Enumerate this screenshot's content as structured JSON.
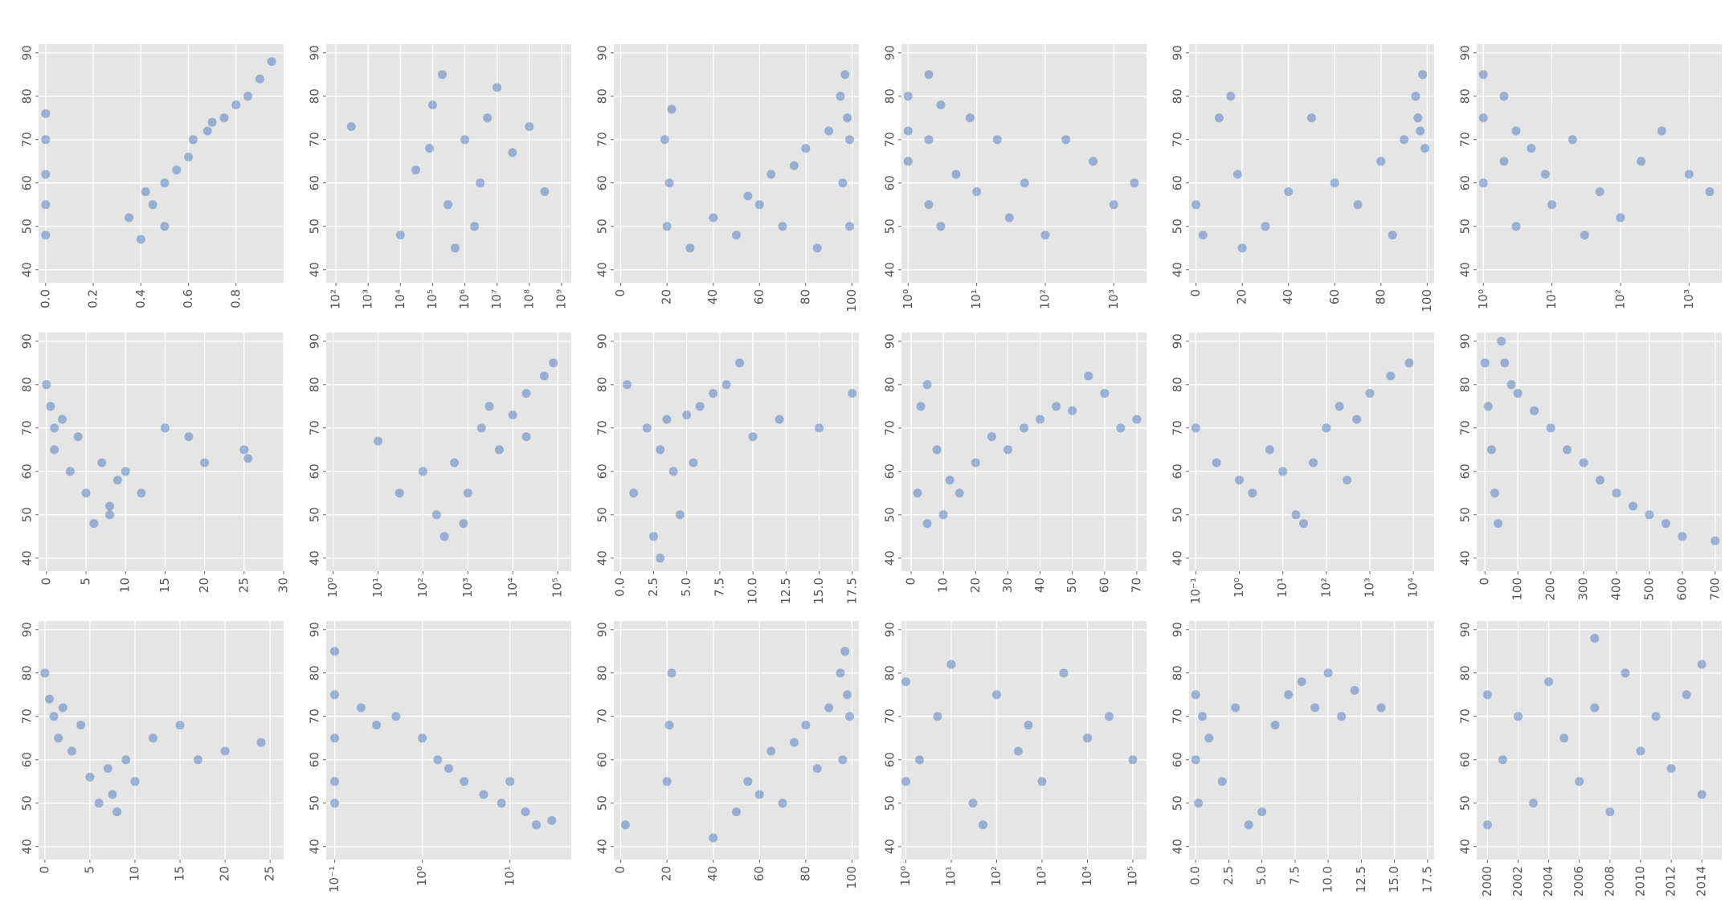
{
  "chart_data": [
    {
      "type": "scatter",
      "color": "#0047ab",
      "grid": true,
      "xscale": "linear",
      "xlim": [
        -0.03,
        1.0
      ],
      "xticks": [
        {
          "value": 0,
          "label": "0.0"
        },
        {
          "value": 0.2,
          "label": "0.2"
        },
        {
          "value": 0.4,
          "label": "0.4"
        },
        {
          "value": 0.6,
          "label": "0.6"
        },
        {
          "value": 0.8,
          "label": "0.8"
        }
      ],
      "ylim": [
        37,
        92
      ],
      "yticks": [
        40,
        50,
        60,
        70,
        80,
        90
      ],
      "x": [
        0,
        0,
        0,
        0,
        0,
        0.35,
        0.4,
        0.45,
        0.5,
        0.55,
        0.6,
        0.62,
        0.68,
        0.7,
        0.75,
        0.8,
        0.85,
        0.9,
        0.95,
        0.5,
        0.42
      ],
      "y": [
        48,
        55,
        62,
        70,
        76,
        52,
        47,
        55,
        60,
        63,
        66,
        70,
        72,
        74,
        75,
        78,
        80,
        84,
        88,
        50,
        58
      ]
    },
    {
      "type": "scatter",
      "color": "#0047ab",
      "grid": true,
      "xscale": "log",
      "xlim": [
        50,
        2000000000
      ],
      "xticks": [
        {
          "value": 100,
          "label": "10²"
        },
        {
          "value": 1000,
          "label": "10³"
        },
        {
          "value": 10000,
          "label": "10⁴"
        },
        {
          "value": 100000,
          "label": "10⁵"
        },
        {
          "value": 1000000,
          "label": "10⁶"
        },
        {
          "value": 10000000,
          "label": "10⁷"
        },
        {
          "value": 100000000,
          "label": "10⁸"
        },
        {
          "value": 1000000000,
          "label": "10⁹"
        }
      ],
      "ylim": [
        37,
        92
      ],
      "yticks": [
        40,
        50,
        60,
        70,
        80,
        90
      ],
      "x": [
        300,
        10000,
        30000,
        100000,
        300000,
        1000000,
        3000000,
        10000000,
        30000000,
        100000000,
        300000000,
        500000,
        200000,
        2000000,
        5000000,
        80000
      ],
      "y": [
        73,
        48,
        63,
        78,
        55,
        70,
        60,
        82,
        67,
        73,
        58,
        45,
        85,
        50,
        75,
        68
      ]
    },
    {
      "type": "scatter",
      "color": "#0047ab",
      "grid": true,
      "xscale": "linear",
      "xlim": [
        -3,
        103
      ],
      "xticks": [
        0,
        20,
        40,
        60,
        80,
        100
      ],
      "ylim": [
        37,
        92
      ],
      "yticks": [
        40,
        50,
        60,
        70,
        80,
        90
      ],
      "x": [
        20,
        21,
        19,
        22,
        30,
        40,
        50,
        55,
        60,
        65,
        70,
        75,
        80,
        85,
        90,
        95,
        97,
        98,
        99,
        96,
        99
      ],
      "y": [
        50,
        60,
        70,
        77,
        45,
        52,
        48,
        57,
        55,
        62,
        50,
        64,
        68,
        45,
        72,
        80,
        85,
        75,
        70,
        60,
        50
      ]
    },
    {
      "type": "scatter",
      "color": "#0047ab",
      "grid": true,
      "xscale": "log",
      "xlim": [
        0.8,
        3000
      ],
      "xticks": [
        {
          "value": 1,
          "label": "10⁰"
        },
        {
          "value": 10,
          "label": "10¹"
        },
        {
          "value": 100,
          "label": "10²"
        },
        {
          "value": 1000,
          "label": "10³"
        }
      ],
      "ylim": [
        37,
        92
      ],
      "yticks": [
        40,
        50,
        60,
        70,
        80,
        90
      ],
      "x": [
        1,
        1,
        1,
        2,
        2,
        2,
        3,
        3,
        5,
        8,
        10,
        20,
        30,
        50,
        100,
        200,
        500,
        1000,
        2000
      ],
      "y": [
        80,
        72,
        65,
        85,
        70,
        55,
        78,
        50,
        62,
        75,
        58,
        70,
        52,
        60,
        48,
        70,
        65,
        55,
        60
      ]
    },
    {
      "type": "scatter",
      "color": "#0047ab",
      "grid": true,
      "xscale": "linear",
      "xlim": [
        -3,
        103
      ],
      "xticks": [
        0,
        20,
        40,
        60,
        80,
        100
      ],
      "ylim": [
        37,
        92
      ],
      "yticks": [
        40,
        50,
        60,
        70,
        80,
        90
      ],
      "x": [
        0,
        3,
        10,
        15,
        18,
        20,
        30,
        40,
        50,
        60,
        70,
        80,
        85,
        90,
        95,
        97,
        99,
        98,
        96
      ],
      "y": [
        55,
        48,
        75,
        80,
        62,
        45,
        50,
        58,
        75,
        60,
        55,
        65,
        48,
        70,
        80,
        72,
        68,
        85,
        75
      ]
    },
    {
      "type": "scatter",
      "color": "#0047ab",
      "grid": true,
      "xscale": "log",
      "xlim": [
        0.8,
        3000
      ],
      "xticks": [
        {
          "value": 1,
          "label": "10⁰"
        },
        {
          "value": 10,
          "label": "10¹"
        },
        {
          "value": 100,
          "label": "10²"
        },
        {
          "value": 1000,
          "label": "10³"
        }
      ],
      "ylim": [
        37,
        92
      ],
      "yticks": [
        40,
        50,
        60,
        70,
        80,
        90
      ],
      "x": [
        1,
        1,
        1,
        2,
        2,
        3,
        3,
        5,
        8,
        10,
        20,
        30,
        50,
        100,
        200,
        400,
        1000,
        2000
      ],
      "y": [
        85,
        75,
        60,
        80,
        65,
        72,
        50,
        68,
        62,
        55,
        70,
        48,
        58,
        52,
        65,
        72,
        62,
        58
      ]
    },
    {
      "type": "scatter",
      "color": "#0047ab",
      "grid": true,
      "xscale": "linear",
      "xlim": [
        -1,
        30
      ],
      "xticks": [
        0,
        5,
        10,
        15,
        20,
        25,
        30
      ],
      "ylim": [
        37,
        92
      ],
      "yticks": [
        40,
        50,
        60,
        70,
        80,
        90
      ],
      "x": [
        0,
        0.5,
        1,
        1,
        2,
        3,
        4,
        5,
        6,
        7,
        8,
        8,
        9,
        10,
        12,
        15,
        18,
        20,
        25,
        25.5
      ],
      "y": [
        80,
        75,
        70,
        65,
        72,
        60,
        68,
        55,
        48,
        62,
        52,
        50,
        58,
        60,
        55,
        70,
        68,
        62,
        65,
        63
      ]
    },
    {
      "type": "scatter",
      "color": "#0047ab",
      "grid": true,
      "xscale": "log",
      "xlim": [
        0.7,
        200000
      ],
      "xticks": [
        {
          "value": 1,
          "label": "10⁰"
        },
        {
          "value": 10,
          "label": "10¹"
        },
        {
          "value": 100,
          "label": "10²"
        },
        {
          "value": 1000,
          "label": "10³"
        },
        {
          "value": 10000,
          "label": "10⁴"
        },
        {
          "value": 100000,
          "label": "10⁵"
        }
      ],
      "ylim": [
        37,
        92
      ],
      "yticks": [
        40,
        50,
        60,
        70,
        80,
        90
      ],
      "x": [
        10,
        30,
        100,
        200,
        500,
        1000,
        2000,
        5000,
        10000,
        20000,
        50000,
        80000,
        300,
        3000,
        800,
        20000
      ],
      "y": [
        67,
        55,
        60,
        50,
        62,
        55,
        70,
        65,
        73,
        78,
        82,
        85,
        45,
        75,
        48,
        68
      ]
    },
    {
      "type": "scatter",
      "color": "#0047ab",
      "grid": true,
      "xscale": "linear",
      "xlim": [
        -0.5,
        18
      ],
      "xticks": [
        {
          "value": 0,
          "label": "0.0"
        },
        {
          "value": 2.5,
          "label": "2.5"
        },
        {
          "value": 5,
          "label": "5.0"
        },
        {
          "value": 7.5,
          "label": "7.5"
        },
        {
          "value": 10,
          "label": "10.0"
        },
        {
          "value": 12.5,
          "label": "12.5"
        },
        {
          "value": 15,
          "label": "15.0"
        },
        {
          "value": 17.5,
          "label": "17.5"
        }
      ],
      "ylim": [
        37,
        92
      ],
      "yticks": [
        40,
        50,
        60,
        70,
        80,
        90
      ],
      "x": [
        0.5,
        1,
        2,
        2.5,
        3,
        3.5,
        4,
        4.5,
        5,
        6,
        7,
        8,
        9,
        10,
        12,
        15,
        17.5,
        3,
        5.5
      ],
      "y": [
        80,
        55,
        70,
        45,
        65,
        72,
        60,
        50,
        73,
        75,
        78,
        80,
        85,
        68,
        72,
        70,
        78,
        40,
        62
      ]
    },
    {
      "type": "scatter",
      "color": "#0047ab",
      "grid": true,
      "xscale": "linear",
      "xlim": [
        -3,
        73
      ],
      "xticks": [
        0,
        10,
        20,
        30,
        40,
        50,
        60,
        70
      ],
      "ylim": [
        37,
        92
      ],
      "yticks": [
        40,
        50,
        60,
        70,
        80,
        90
      ],
      "x": [
        2,
        3,
        5,
        5,
        8,
        10,
        12,
        15,
        20,
        25,
        30,
        35,
        40,
        45,
        50,
        55,
        60,
        65,
        70
      ],
      "y": [
        55,
        75,
        80,
        48,
        65,
        50,
        58,
        55,
        62,
        68,
        65,
        70,
        72,
        75,
        74,
        82,
        78,
        70,
        72
      ]
    },
    {
      "type": "scatter",
      "color": "#0047ab",
      "grid": true,
      "xscale": "log",
      "xlim": [
        0.07,
        30000
      ],
      "xticks": [
        {
          "value": 0.1,
          "label": "10⁻¹"
        },
        {
          "value": 1,
          "label": "10⁰"
        },
        {
          "value": 10,
          "label": "10¹"
        },
        {
          "value": 100,
          "label": "10²"
        },
        {
          "value": 1000,
          "label": "10³"
        },
        {
          "value": 10000,
          "label": "10⁴"
        }
      ],
      "ylim": [
        37,
        92
      ],
      "yticks": [
        40,
        50,
        60,
        70,
        80,
        90
      ],
      "x": [
        0.1,
        0.3,
        1,
        2,
        5,
        10,
        20,
        50,
        100,
        200,
        500,
        1000,
        3000,
        8000,
        30,
        300
      ],
      "y": [
        70,
        62,
        58,
        55,
        65,
        60,
        50,
        62,
        70,
        75,
        72,
        78,
        82,
        85,
        48,
        58
      ]
    },
    {
      "type": "scatter",
      "color": "#0047ab",
      "grid": true,
      "xscale": "linear",
      "xlim": [
        -25,
        720
      ],
      "xticks": [
        0,
        100,
        200,
        300,
        400,
        500,
        600,
        700
      ],
      "ylim": [
        37,
        92
      ],
      "yticks": [
        40,
        50,
        60,
        70,
        80,
        90
      ],
      "x": [
        0,
        10,
        20,
        30,
        40,
        50,
        60,
        80,
        100,
        150,
        200,
        250,
        300,
        350,
        400,
        450,
        500,
        550,
        600,
        700
      ],
      "y": [
        85,
        75,
        65,
        55,
        48,
        90,
        85,
        80,
        78,
        74,
        70,
        65,
        62,
        58,
        55,
        52,
        50,
        48,
        45,
        44
      ]
    },
    {
      "type": "scatter",
      "color": "#0047ab",
      "grid": true,
      "xscale": "linear",
      "xlim": [
        -0.7,
        26.5
      ],
      "xticks": [
        0,
        5,
        10,
        15,
        20,
        25
      ],
      "ylim": [
        37,
        92
      ],
      "yticks": [
        40,
        50,
        60,
        70,
        80,
        90
      ],
      "x": [
        0,
        0.5,
        1,
        1.5,
        2,
        3,
        4,
        5,
        6,
        7,
        7.5,
        8,
        9,
        10,
        12,
        15,
        17,
        20,
        24
      ],
      "y": [
        80,
        74,
        70,
        65,
        72,
        62,
        68,
        56,
        50,
        58,
        52,
        48,
        60,
        55,
        65,
        68,
        60,
        62,
        64
      ]
    },
    {
      "type": "scatter",
      "color": "#0047ab",
      "grid": true,
      "xscale": "log",
      "xlim": [
        0.08,
        50
      ],
      "xticks": [
        {
          "value": 0.1,
          "label": "10⁻¹"
        },
        {
          "value": 1,
          "label": "10⁰"
        },
        {
          "value": 10,
          "label": "10¹"
        }
      ],
      "ylim": [
        37,
        92
      ],
      "yticks": [
        40,
        50,
        60,
        70,
        80,
        90
      ],
      "x": [
        0.1,
        0.1,
        0.1,
        0.1,
        0.1,
        0.2,
        0.3,
        0.5,
        1,
        1.5,
        2,
        3,
        5,
        8,
        10,
        15,
        20,
        30
      ],
      "y": [
        85,
        75,
        65,
        55,
        50,
        72,
        68,
        70,
        65,
        60,
        58,
        55,
        52,
        50,
        55,
        48,
        45,
        46
      ]
    },
    {
      "type": "scatter",
      "color": "#0047ab",
      "grid": true,
      "xscale": "linear",
      "xlim": [
        -3,
        103
      ],
      "xticks": [
        0,
        20,
        40,
        60,
        80,
        100
      ],
      "ylim": [
        37,
        92
      ],
      "yticks": [
        40,
        50,
        60,
        70,
        80,
        90
      ],
      "x": [
        2,
        20,
        21,
        22,
        40,
        50,
        55,
        60,
        65,
        70,
        75,
        80,
        85,
        90,
        95,
        97,
        98,
        99,
        96
      ],
      "y": [
        45,
        55,
        68,
        80,
        42,
        48,
        55,
        52,
        62,
        50,
        64,
        68,
        58,
        72,
        80,
        85,
        75,
        70,
        60
      ]
    },
    {
      "type": "scatter",
      "color": "#0047ab",
      "grid": true,
      "xscale": "log",
      "xlim": [
        0.8,
        200000
      ],
      "xticks": [
        {
          "value": 1,
          "label": "10⁰"
        },
        {
          "value": 10,
          "label": "10¹"
        },
        {
          "value": 100,
          "label": "10²"
        },
        {
          "value": 1000,
          "label": "10³"
        },
        {
          "value": 10000,
          "label": "10⁴"
        },
        {
          "value": 100000,
          "label": "10⁵"
        }
      ],
      "ylim": [
        37,
        92
      ],
      "yticks": [
        40,
        50,
        60,
        70,
        80,
        90
      ],
      "x": [
        1,
        1,
        2,
        5,
        10,
        30,
        100,
        300,
        1000,
        3000,
        10000,
        30000,
        100000,
        50,
        500
      ],
      "y": [
        55,
        78,
        60,
        70,
        82,
        50,
        75,
        62,
        55,
        80,
        65,
        70,
        60,
        45,
        68
      ]
    },
    {
      "type": "scatter",
      "color": "#0047ab",
      "grid": true,
      "xscale": "linear",
      "xlim": [
        -0.5,
        18
      ],
      "xticks": [
        {
          "value": 0,
          "label": "0.0"
        },
        {
          "value": 2.5,
          "label": "2.5"
        },
        {
          "value": 5,
          "label": "5.0"
        },
        {
          "value": 7.5,
          "label": "7.5"
        },
        {
          "value": 10,
          "label": "10.0"
        },
        {
          "value": 12.5,
          "label": "12.5"
        },
        {
          "value": 15,
          "label": "15.0"
        },
        {
          "value": 17.5,
          "label": "17.5"
        }
      ],
      "ylim": [
        37,
        92
      ],
      "yticks": [
        40,
        50,
        60,
        70,
        80,
        90
      ],
      "x": [
        0,
        0,
        0.2,
        0.5,
        1,
        2,
        3,
        4,
        5,
        6,
        7,
        8,
        9,
        10,
        11,
        12,
        14
      ],
      "y": [
        75,
        60,
        50,
        70,
        65,
        55,
        72,
        45,
        48,
        68,
        75,
        78,
        72,
        80,
        70,
        76,
        72
      ]
    },
    {
      "type": "scatter",
      "color": "#0047ab",
      "grid": true,
      "xscale": "linear",
      "xlim": [
        1999.3,
        2015.3
      ],
      "xticks": [
        2000,
        2002,
        2004,
        2006,
        2008,
        2010,
        2012,
        2014
      ],
      "ylim": [
        37,
        92
      ],
      "yticks": [
        40,
        50,
        60,
        70,
        80,
        90
      ],
      "x": [
        2000,
        2000,
        2001,
        2002,
        2003,
        2004,
        2005,
        2006,
        2007,
        2008,
        2009,
        2010,
        2011,
        2012,
        2013,
        2014,
        2014,
        2007
      ],
      "y": [
        45,
        75,
        60,
        70,
        50,
        78,
        65,
        55,
        72,
        48,
        80,
        62,
        70,
        58,
        75,
        52,
        82,
        88
      ]
    }
  ]
}
